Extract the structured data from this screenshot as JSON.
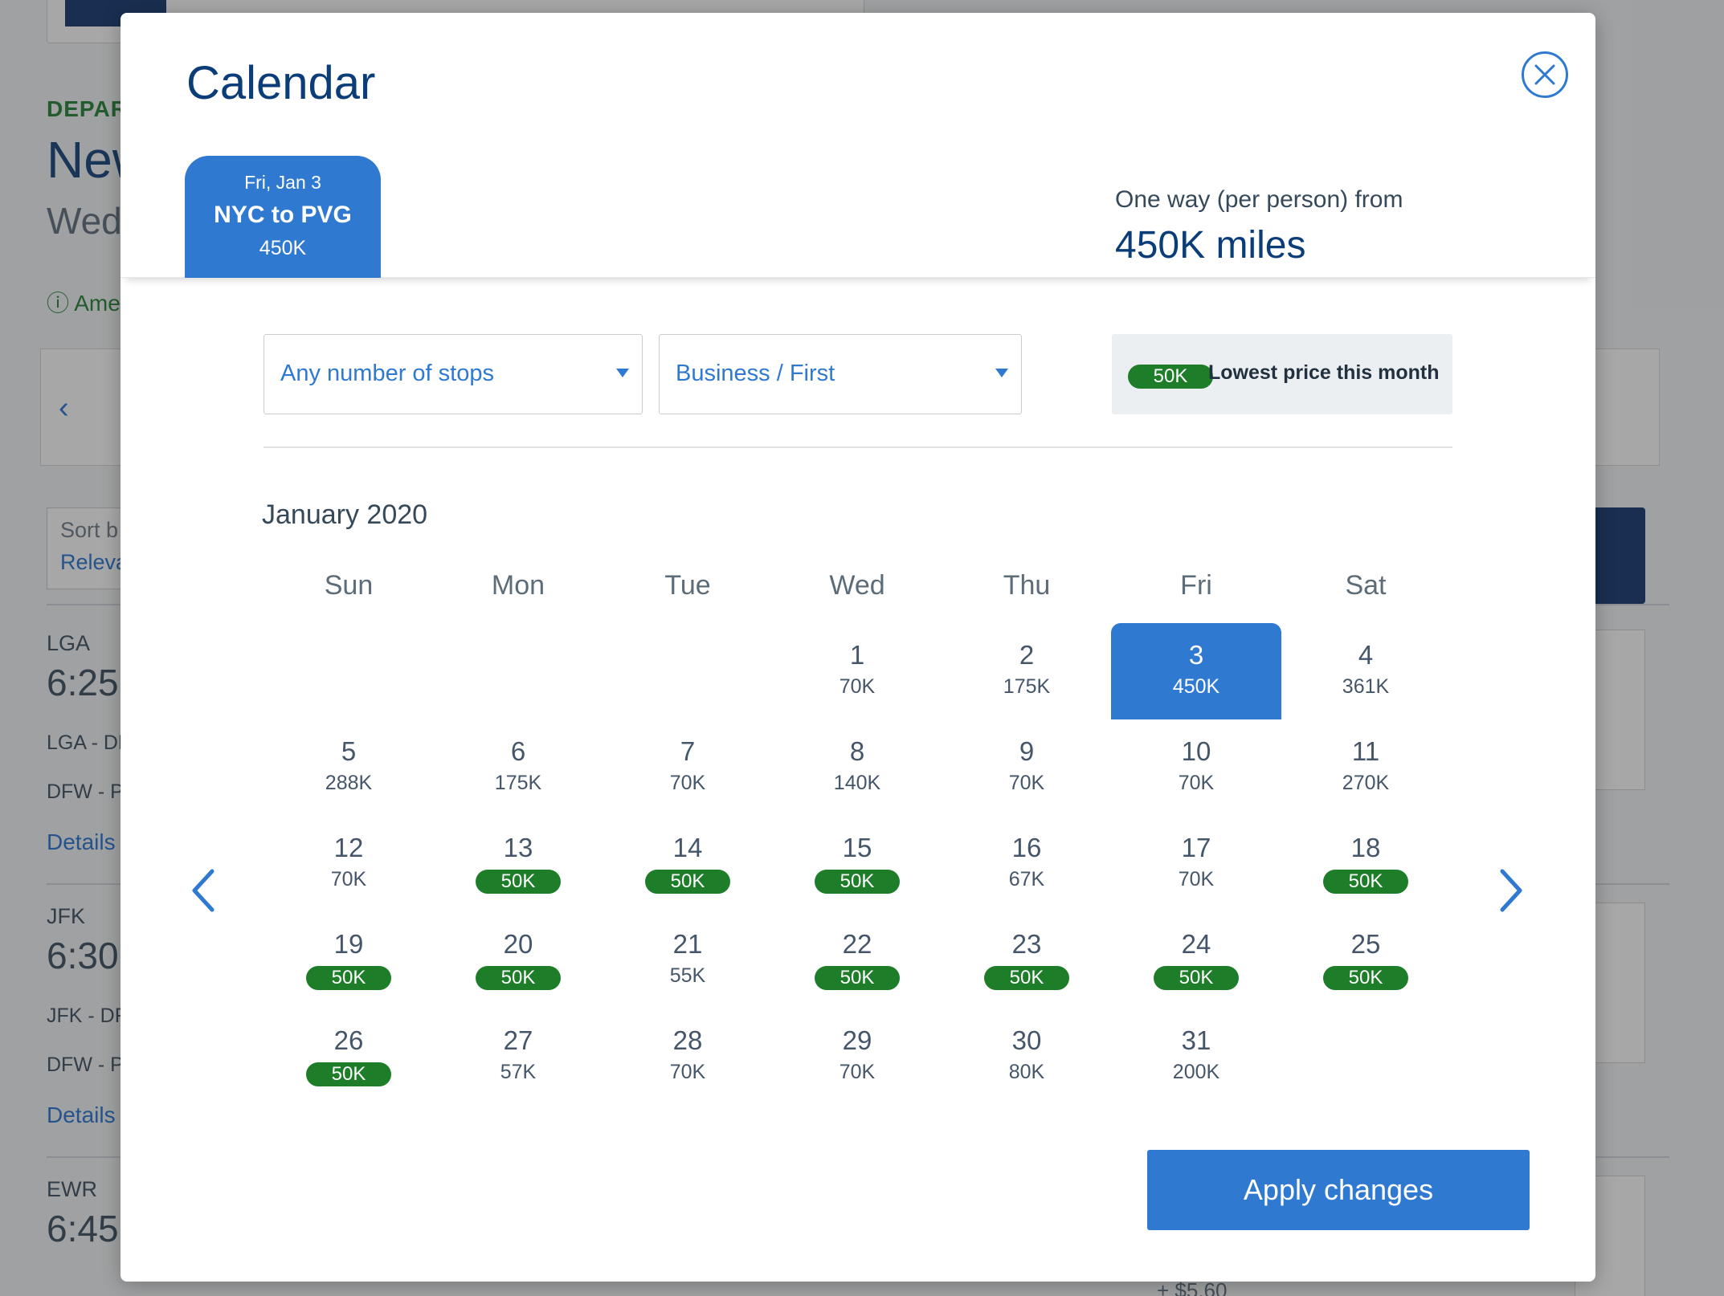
{
  "background": {
    "depart_label": "DEPAR",
    "city": "New",
    "date": "Wed",
    "notice": "Ame",
    "sort_label": "Sort b",
    "sort_value": "Releva",
    "price_fragment": "+ $5.60",
    "flights": [
      {
        "airport": "LGA",
        "time": "6:25",
        "route1": "LGA - DF",
        "route2": "DFW - P",
        "details": "Details"
      },
      {
        "airport": "JFK",
        "time": "6:30",
        "route1": "JFK - DF",
        "route2": "DFW - P",
        "details": "Details"
      },
      {
        "airport": "EWR",
        "time": "6:45"
      }
    ]
  },
  "modal": {
    "title": "Calendar",
    "trip_tab": {
      "date": "Fri, Jan 3",
      "route": "NYC to PVG",
      "price": "450K"
    },
    "fare_label": "One way (per person) from",
    "fare_value": "450K miles",
    "filters": {
      "stops": "Any number of stops",
      "cabin": "Business / First"
    },
    "legend": {
      "badge": "50K",
      "text": "Lowest price this month"
    },
    "month": "January 2020",
    "weekdays": [
      "Sun",
      "Mon",
      "Tue",
      "Wed",
      "Thu",
      "Fri",
      "Sat"
    ],
    "lowest_price": "50K",
    "selected_day": 3,
    "first_weekday_index": 3,
    "days": [
      {
        "day": "1",
        "price": "70K"
      },
      {
        "day": "2",
        "price": "175K"
      },
      {
        "day": "3",
        "price": "450K"
      },
      {
        "day": "4",
        "price": "361K"
      },
      {
        "day": "5",
        "price": "288K"
      },
      {
        "day": "6",
        "price": "175K"
      },
      {
        "day": "7",
        "price": "70K"
      },
      {
        "day": "8",
        "price": "140K"
      },
      {
        "day": "9",
        "price": "70K"
      },
      {
        "day": "10",
        "price": "70K"
      },
      {
        "day": "11",
        "price": "270K"
      },
      {
        "day": "12",
        "price": "70K"
      },
      {
        "day": "13",
        "price": "50K"
      },
      {
        "day": "14",
        "price": "50K"
      },
      {
        "day": "15",
        "price": "50K"
      },
      {
        "day": "16",
        "price": "67K"
      },
      {
        "day": "17",
        "price": "70K"
      },
      {
        "day": "18",
        "price": "50K"
      },
      {
        "day": "19",
        "price": "50K"
      },
      {
        "day": "20",
        "price": "50K"
      },
      {
        "day": "21",
        "price": "55K"
      },
      {
        "day": "22",
        "price": "50K"
      },
      {
        "day": "23",
        "price": "50K"
      },
      {
        "day": "24",
        "price": "50K"
      },
      {
        "day": "25",
        "price": "50K"
      },
      {
        "day": "26",
        "price": "50K"
      },
      {
        "day": "27",
        "price": "57K"
      },
      {
        "day": "28",
        "price": "70K"
      },
      {
        "day": "29",
        "price": "70K"
      },
      {
        "day": "30",
        "price": "80K"
      },
      {
        "day": "31",
        "price": "200K"
      }
    ],
    "apply_label": "Apply changes",
    "colors": {
      "primary": "#2f79d1",
      "title": "#0b3d78",
      "lowest_badge": "#1e7d29"
    }
  }
}
